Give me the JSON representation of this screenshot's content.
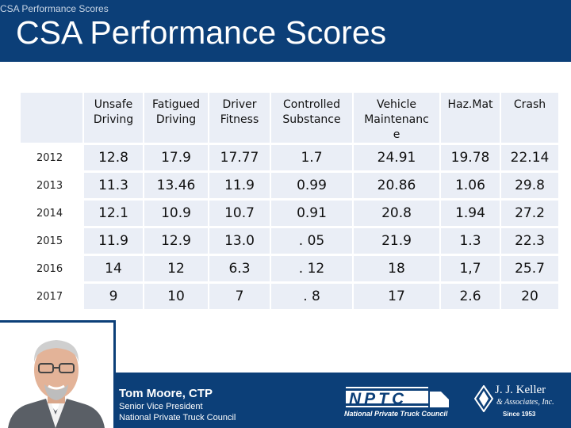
{
  "header": {
    "small_title": "CSA Performance Scores",
    "title": "CSA Performance Scores"
  },
  "table": {
    "columns": [
      [
        "Unsafe",
        "Driving"
      ],
      [
        "Fatigued",
        "Driving"
      ],
      [
        "Driver",
        "Fitness"
      ],
      [
        "Controlled",
        "Substance"
      ],
      [
        "Vehicle",
        "Maintenanc",
        "e"
      ],
      [
        "Haz.Mat"
      ],
      [
        "Crash"
      ]
    ],
    "rows": [
      {
        "year": "2012",
        "values": [
          "12.8",
          "17.9",
          "17.77",
          "1.7",
          "24.91",
          "19.78",
          "22.14"
        ]
      },
      {
        "year": "2013",
        "values": [
          "11.3",
          "13.46",
          "11.9",
          "0.99",
          "20.86",
          "1.06",
          "29.8"
        ]
      },
      {
        "year": "2014",
        "values": [
          "12.1",
          "10.9",
          "10.7",
          "0.91",
          "20.8",
          "1.94",
          "27.2"
        ]
      },
      {
        "year": "2015",
        "values": [
          "11.9",
          "12.9",
          "13.0",
          ". 05",
          "21.9",
          "1.3",
          "22.3"
        ]
      },
      {
        "year": "2016",
        "values": [
          "14",
          "12",
          "6.3",
          ". 12",
          "18",
          "1,7",
          "25.7"
        ]
      },
      {
        "year": "2017",
        "values": [
          "9",
          "10",
          "7",
          ". 8",
          "17",
          "2.6",
          "20"
        ]
      }
    ]
  },
  "presenter": {
    "name": "Tom Moore, CTP",
    "title": "Senior Vice President",
    "organization": "National Private Truck Council"
  },
  "logos": {
    "nptc_text": "NPTC",
    "nptc_sub": "National Private Truck Council",
    "keller_name": "J. J. Keller",
    "keller_sub": "& Associates, Inc.",
    "keller_since": "Since 1953"
  },
  "colors": {
    "brand_blue": "#0c3f78",
    "cell_background": "#eaeef6"
  }
}
